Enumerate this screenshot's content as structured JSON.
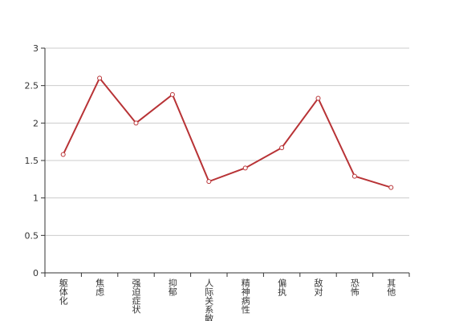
{
  "chart_data": {
    "type": "line",
    "categories": [
      "躯体化",
      "焦虑",
      "强迫症状",
      "抑郁",
      "人际关系敏感",
      "精神病性",
      "偏执",
      "敌对",
      "恐怖",
      "其他"
    ],
    "values": [
      1.58,
      2.6,
      2.0,
      2.38,
      1.22,
      1.4,
      1.67,
      2.33,
      1.29,
      1.14
    ],
    "color": "#b83336",
    "ylim": [
      0,
      3
    ],
    "yticks": [
      0,
      0.5,
      1,
      1.5,
      2,
      2.5,
      3
    ],
    "grid": true
  }
}
